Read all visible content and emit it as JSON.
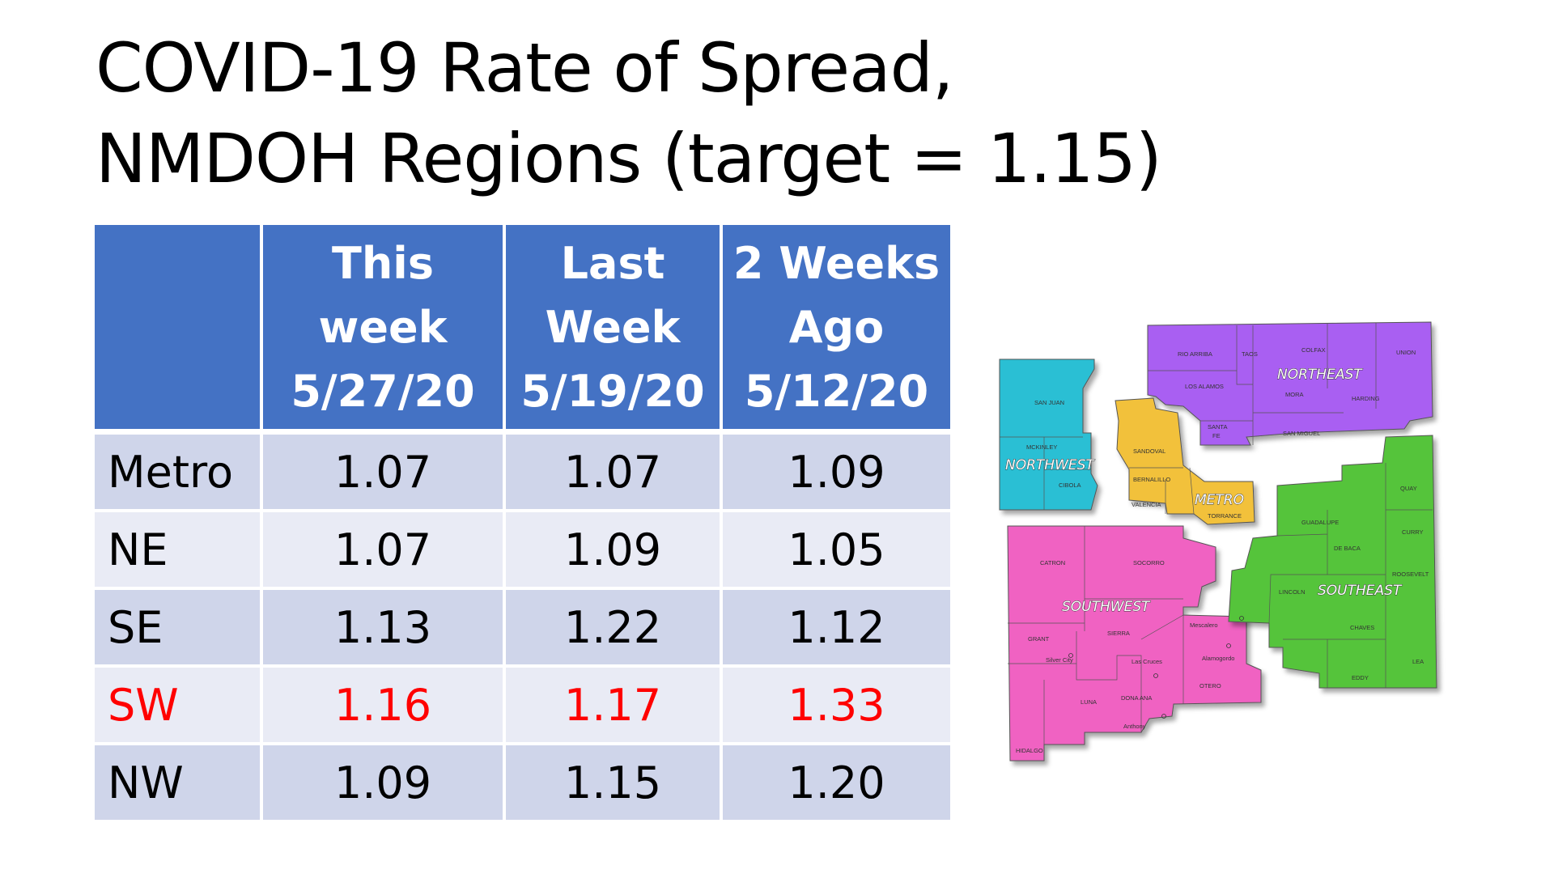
{
  "title": {
    "line1": "COVID-19 Rate of Spread,",
    "line2": "NMDOH Regions (target = 1.15)"
  },
  "table": {
    "headers": [
      {
        "lines": [
          "",
          "",
          ""
        ]
      },
      {
        "lines": [
          "This",
          "week",
          "5/27/20"
        ]
      },
      {
        "lines": [
          "Last",
          "Week",
          "5/19/20"
        ]
      },
      {
        "lines": [
          "2 Weeks",
          "Ago",
          "5/12/20"
        ]
      }
    ],
    "rows": [
      {
        "region": "Metro",
        "this_week": "1.07",
        "last_week": "1.07",
        "two_weeks_ago": "1.09"
      },
      {
        "region": "NE",
        "this_week": "1.07",
        "last_week": "1.09",
        "two_weeks_ago": "1.05"
      },
      {
        "region": "SE",
        "this_week": "1.13",
        "last_week": "1.22",
        "two_weeks_ago": "1.12"
      },
      {
        "region": "SW",
        "this_week": "1.16",
        "last_week": "1.17",
        "two_weeks_ago": "1.33"
      },
      {
        "region": "NW",
        "this_week": "1.09",
        "last_week": "1.15",
        "two_weeks_ago": "1.20"
      }
    ],
    "header_color": "#4472c4",
    "row_color_odd": "#cfd5ea",
    "row_color_even": "#e9ebf5",
    "highlight_color": "#ff0000"
  },
  "map": {
    "regions": {
      "northwest": {
        "label": "NORTHWEST",
        "color": "#2bbfd4"
      },
      "northeast": {
        "label": "NORTHEAST",
        "color": "#a95ff2"
      },
      "metro": {
        "label": "METRO",
        "color": "#f2c13a"
      },
      "southwest": {
        "label": "SOUTHWEST",
        "color": "#f062c2"
      },
      "southeast": {
        "label": "SOUTHEAST",
        "color": "#55c43b"
      }
    },
    "counties": {
      "san_juan": "SAN JUAN",
      "mckinley": "MCKINLEY",
      "cibola": "CIBOLA",
      "rio_arriba": "RIO ARRIBA",
      "taos": "TAOS",
      "colfax": "COLFAX",
      "union": "UNION",
      "los_alamos": "LOS ALAMOS",
      "mora": "MORA",
      "harding": "HARDING",
      "santa_fe_1": "SANTA",
      "santa_fe_2": "FE",
      "san_miguel": "SAN MIGUEL",
      "sandoval": "SANDOVAL",
      "bernalillo": "BERNALILLO",
      "valencia": "VALENCIA",
      "torrance": "TORRANCE",
      "catron": "CATRON",
      "socorro": "SOCORRO",
      "grant": "GRANT",
      "sierra": "SIERRA",
      "silver_city": "Silver City",
      "luna": "LUNA",
      "dona_ana": "DONA ANA",
      "las_cruces": "Las Cruces",
      "anthony": "Anthony",
      "otero": "OTERO",
      "mescalero": "Mescalero",
      "alamogordo": "Alamogordo",
      "hidalgo": "HIDALGO",
      "guadalupe": "GUADALUPE",
      "quay": "QUAY",
      "de_baca": "DE BACA",
      "curry": "CURRY",
      "roosevelt": "ROOSEVELT",
      "lincoln": "LINCOLN",
      "chaves": "CHAVES",
      "lea": "LEA",
      "eddy": "EDDY"
    }
  }
}
